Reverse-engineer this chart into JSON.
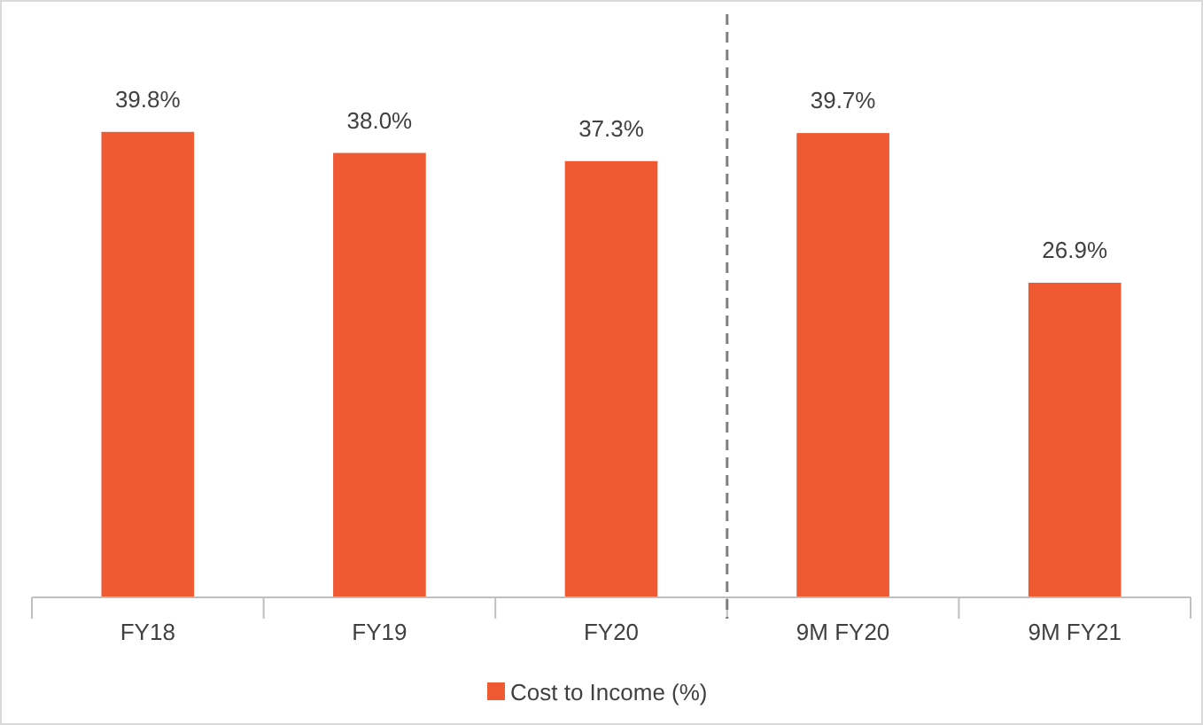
{
  "chart_data": {
    "type": "bar",
    "categories": [
      "FY18",
      "FY19",
      "FY20",
      "9M FY20",
      "9M FY21"
    ],
    "series": [
      {
        "name": "Cost to Income (%)",
        "color": "#f05a32",
        "values": [
          39.8,
          38.0,
          37.3,
          39.7,
          26.9
        ],
        "value_labels": [
          "39.8%",
          "38.0%",
          "37.3%",
          "39.7%",
          "26.9%"
        ]
      }
    ],
    "legend": "bottom"
  }
}
